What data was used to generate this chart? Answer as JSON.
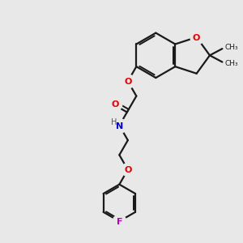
{
  "bg_color": "#e8e8e8",
  "bond_color": "#1a1a1a",
  "o_color": "#e60000",
  "n_color": "#0000cc",
  "f_color": "#bb00bb",
  "h_color": "#555555",
  "lw": 1.6,
  "figsize": [
    3.0,
    3.0
  ],
  "dpi": 100,
  "xlim": [
    0,
    10
  ],
  "ylim": [
    0,
    10
  ]
}
